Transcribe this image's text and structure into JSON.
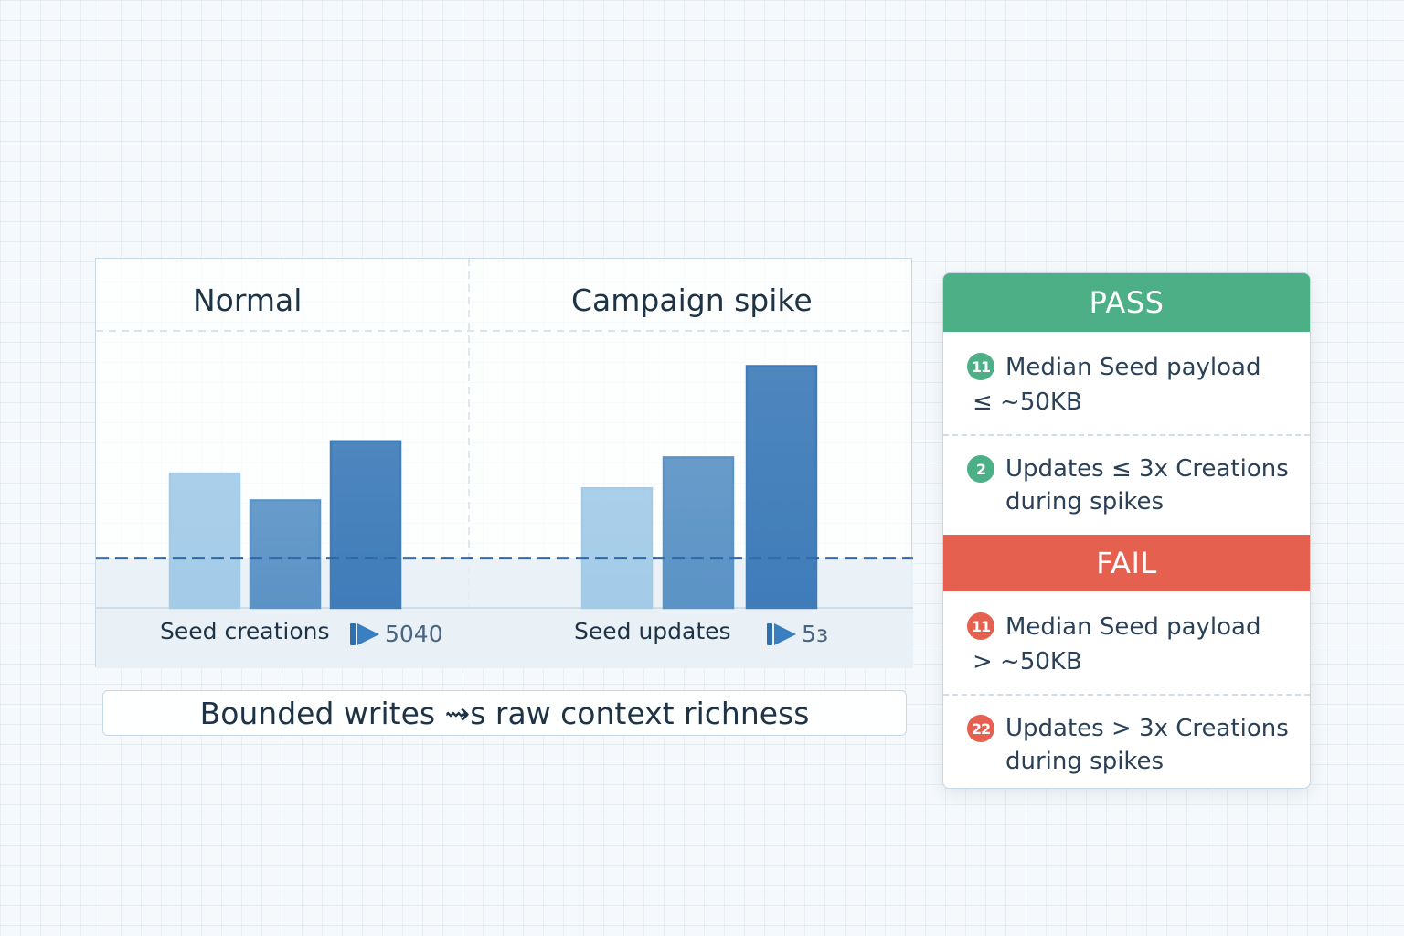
{
  "chart_data": {
    "type": "bar",
    "panels": [
      {
        "title": "Normal",
        "group_label": "Seed creations",
        "marker_value": "5040",
        "values": [
          1.0,
          0.8,
          1.24
        ]
      },
      {
        "title": "Campaign spike",
        "group_label": "Seed updates",
        "marker_value": "5з",
        "values": [
          0.89,
          1.12,
          1.8
        ]
      }
    ],
    "threshold": 0.37,
    "ylim": [
      0,
      2.0
    ],
    "grid": false,
    "bar_colors": [
      "#a3cbe8",
      "#5b93c6",
      "#3f7cb9"
    ],
    "threshold_color": "#2f69a8"
  },
  "caption": "Bounded writes ⇝s raw context richness",
  "criteria": {
    "pass": {
      "label": "PASS",
      "color": "#4caf85",
      "items": [
        {
          "badge": "11",
          "lines": [
            "Median Seed payload",
            "≤ ~50KB"
          ]
        },
        {
          "badge": "2",
          "lines": [
            "Updates ≤ 3x Creations",
            "during spikes"
          ]
        }
      ]
    },
    "fail": {
      "label": "FAIL",
      "color": "#e5604f",
      "items": [
        {
          "badge": "11",
          "lines": [
            "Median Seed payload",
            "> ~50KB"
          ]
        },
        {
          "badge": "22",
          "lines": [
            "Updates > 3x Creations",
            "during spikes"
          ]
        }
      ]
    }
  }
}
